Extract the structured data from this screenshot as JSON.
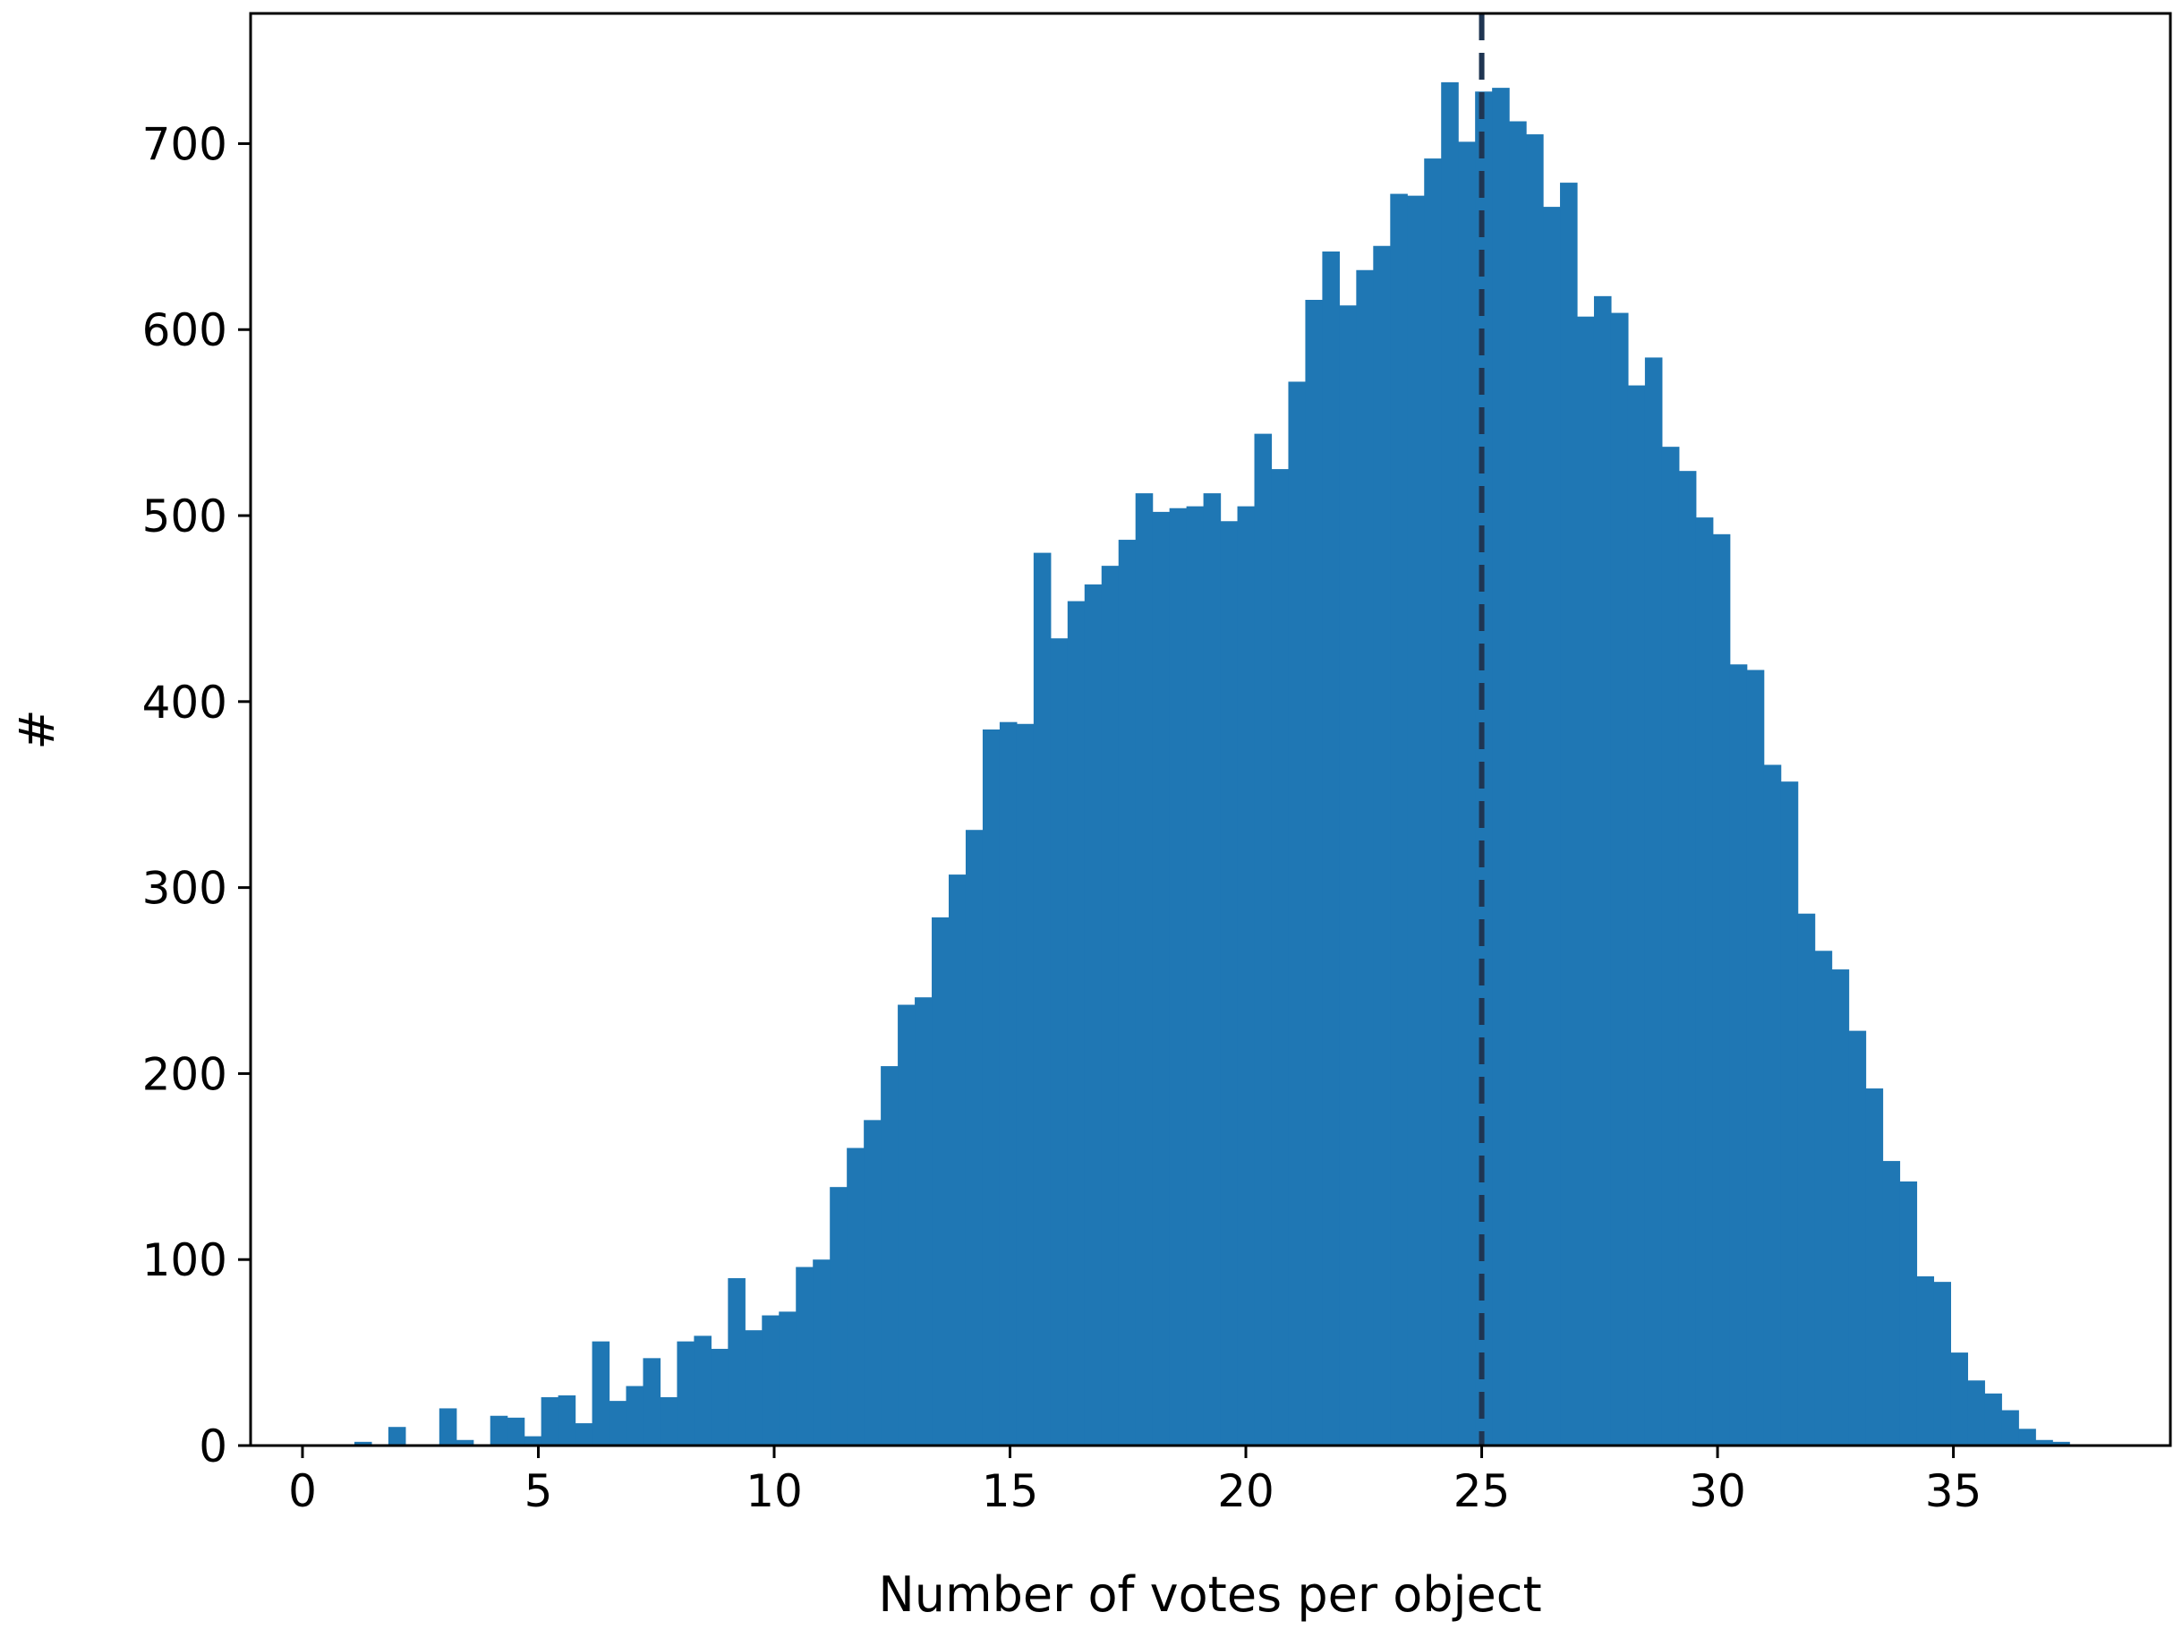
{
  "chart_data": {
    "type": "bar",
    "subtype": "histogram",
    "title": "",
    "xlabel": "Number of votes per object",
    "ylabel": "#",
    "xlim": [
      -1.1,
      39.6
    ],
    "ylim": [
      0,
      770
    ],
    "x_ticks": [
      0,
      5,
      10,
      15,
      20,
      25,
      30,
      35
    ],
    "y_ticks": [
      0,
      100,
      200,
      300,
      400,
      500,
      600,
      700
    ],
    "grid": false,
    "legend": "none",
    "bar_color": "#1f77b4",
    "bin_start": 1.1,
    "bin_width": 0.36,
    "values": [
      2,
      0,
      10,
      0,
      0,
      20,
      3,
      0,
      16,
      15,
      5,
      26,
      27,
      12,
      56,
      24,
      32,
      47,
      26,
      56,
      59,
      52,
      90,
      62,
      70,
      72,
      96,
      100,
      139,
      160,
      175,
      204,
      237,
      241,
      284,
      307,
      331,
      385,
      389,
      388,
      480,
      434,
      454,
      463,
      473,
      487,
      512,
      502,
      504,
      505,
      512,
      497,
      505,
      544,
      525,
      572,
      616,
      642,
      613,
      632,
      645,
      673,
      672,
      692,
      733,
      701,
      728,
      730,
      712,
      705,
      666,
      679,
      607,
      618,
      609,
      570,
      585,
      537,
      524,
      499,
      490,
      420,
      417,
      366,
      357,
      286,
      266,
      256,
      223,
      192,
      153,
      142,
      91,
      88,
      50,
      35,
      28,
      19,
      9,
      3,
      2
    ],
    "vlines": [
      {
        "x": 25.0,
        "style": "dashed",
        "color": "#808080"
      },
      {
        "x": 25.0,
        "style": "dashed",
        "color": "#1f3552"
      }
    ]
  }
}
